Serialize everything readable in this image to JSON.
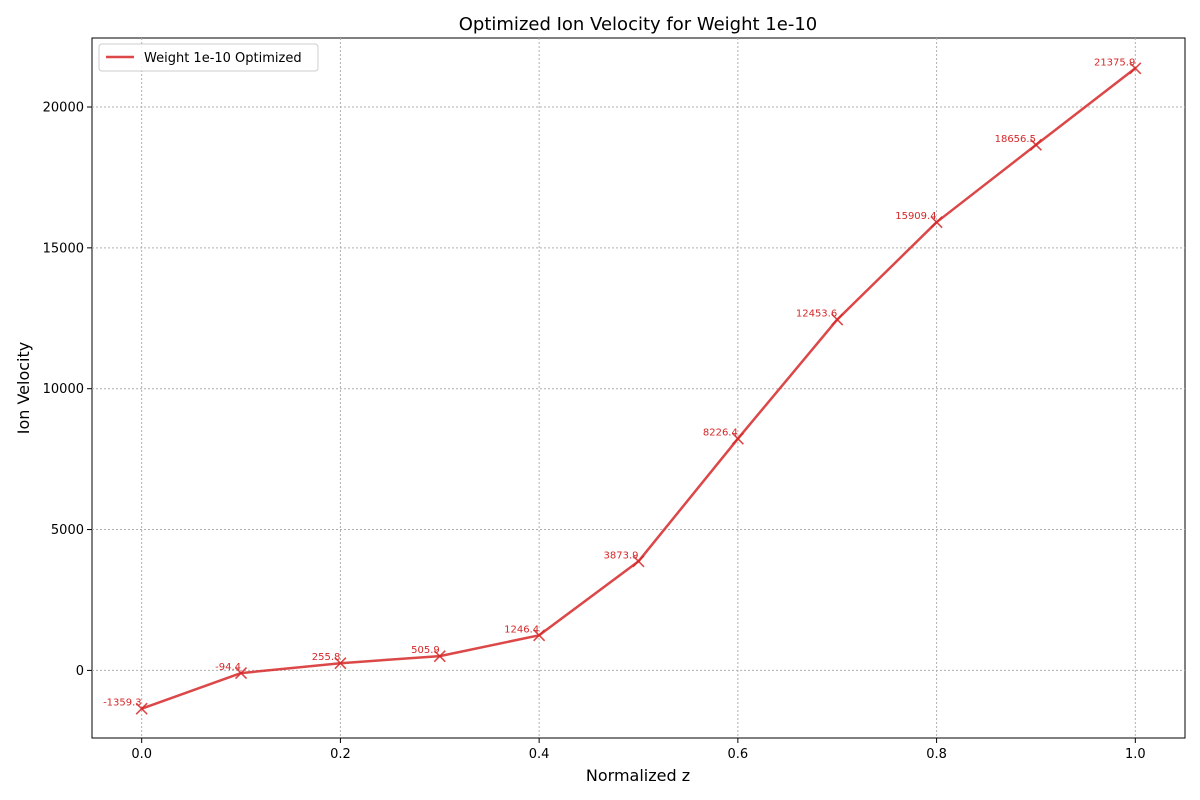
{
  "chart_data": {
    "type": "line",
    "title": "Optimized Ion Velocity for Weight 1e-10",
    "xlabel": "Normalized z",
    "ylabel": "Ion Velocity",
    "xlim": [
      -0.05,
      1.05
    ],
    "ylim": [
      -2400,
      22450
    ],
    "xticks": [
      0.0,
      0.2,
      0.4,
      0.6,
      0.8,
      1.0
    ],
    "xtick_labels": [
      "0.0",
      "0.2",
      "0.4",
      "0.6",
      "0.8",
      "1.0"
    ],
    "yticks": [
      0,
      5000,
      10000,
      15000,
      20000
    ],
    "ytick_labels": [
      "0",
      "5000",
      "10000",
      "15000",
      "20000"
    ],
    "grid": true,
    "legend_position": "upper-left",
    "series": [
      {
        "name": "Weight 1e-10 Optimized",
        "color": "#d62728",
        "marker": "x",
        "x": [
          0.0,
          0.1,
          0.2,
          0.3,
          0.4,
          0.5,
          0.6,
          0.7,
          0.8,
          0.9,
          1.0
        ],
        "values": [
          -1359.3,
          -94.4,
          255.8,
          505.9,
          1246.4,
          3873.9,
          8226.4,
          12453.6,
          15909.4,
          18656.5,
          21375.9
        ],
        "data_labels": [
          "-1359.3",
          "-94.4",
          "255.8",
          "505.9",
          "1246.4",
          "3873.9",
          "8226.4",
          "12453.6",
          "15909.4",
          "18656.5",
          "21375.9"
        ]
      }
    ]
  }
}
